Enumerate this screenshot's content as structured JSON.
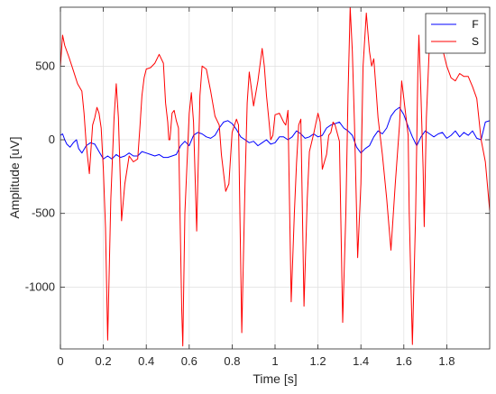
{
  "chart_data": {
    "type": "line",
    "xlabel": "Time [s]",
    "ylabel": "Amplitude [uV]",
    "xlim": [
      0,
      2
    ],
    "ylim": [
      -1420,
      900
    ],
    "x_ticks": [
      0,
      0.2,
      0.4,
      0.6,
      0.8,
      1,
      1.2,
      1.4,
      1.6,
      1.8
    ],
    "x_tick_labels": [
      "0",
      "0.2",
      "0.4",
      "0.6",
      "0.8",
      "1",
      "1.2",
      "1.4",
      "1.6",
      "1.8"
    ],
    "y_ticks": [
      500,
      0,
      -500,
      -1000
    ],
    "y_tick_labels": [
      "500",
      "0",
      "-500",
      "-1000"
    ],
    "grid": true,
    "legend_position": "top-right",
    "series": [
      {
        "name": "F",
        "color": "#0000ff",
        "points": [
          [
            0,
            30
          ],
          [
            0.01,
            40
          ],
          [
            0.02,
            0
          ],
          [
            0.03,
            -30
          ],
          [
            0.045,
            -50
          ],
          [
            0.06,
            -20
          ],
          [
            0.075,
            0
          ],
          [
            0.085,
            -60
          ],
          [
            0.1,
            -90
          ],
          [
            0.12,
            -40
          ],
          [
            0.14,
            -20
          ],
          [
            0.16,
            -30
          ],
          [
            0.18,
            -80
          ],
          [
            0.2,
            -130
          ],
          [
            0.22,
            -110
          ],
          [
            0.24,
            -130
          ],
          [
            0.26,
            -100
          ],
          [
            0.28,
            -120
          ],
          [
            0.3,
            -110
          ],
          [
            0.32,
            -90
          ],
          [
            0.34,
            -110
          ],
          [
            0.36,
            -110
          ],
          [
            0.38,
            -80
          ],
          [
            0.4,
            -90
          ],
          [
            0.42,
            -100
          ],
          [
            0.44,
            -110
          ],
          [
            0.46,
            -100
          ],
          [
            0.48,
            -120
          ],
          [
            0.5,
            -120
          ],
          [
            0.52,
            -110
          ],
          [
            0.54,
            -100
          ],
          [
            0.56,
            -40
          ],
          [
            0.58,
            -10
          ],
          [
            0.6,
            -40
          ],
          [
            0.62,
            30
          ],
          [
            0.64,
            50
          ],
          [
            0.66,
            40
          ],
          [
            0.68,
            20
          ],
          [
            0.7,
            10
          ],
          [
            0.72,
            30
          ],
          [
            0.74,
            80
          ],
          [
            0.76,
            120
          ],
          [
            0.78,
            130
          ],
          [
            0.8,
            110
          ],
          [
            0.82,
            70
          ],
          [
            0.84,
            20
          ],
          [
            0.86,
            0
          ],
          [
            0.88,
            -20
          ],
          [
            0.9,
            -10
          ],
          [
            0.92,
            -40
          ],
          [
            0.94,
            -20
          ],
          [
            0.96,
            0
          ],
          [
            0.98,
            -30
          ],
          [
            1.0,
            -20
          ],
          [
            1.02,
            20
          ],
          [
            1.04,
            20
          ],
          [
            1.06,
            0
          ],
          [
            1.08,
            20
          ],
          [
            1.1,
            60
          ],
          [
            1.12,
            40
          ],
          [
            1.14,
            10
          ],
          [
            1.16,
            20
          ],
          [
            1.18,
            40
          ],
          [
            1.2,
            20
          ],
          [
            1.22,
            30
          ],
          [
            1.24,
            80
          ],
          [
            1.26,
            100
          ],
          [
            1.28,
            110
          ],
          [
            1.3,
            120
          ],
          [
            1.32,
            80
          ],
          [
            1.34,
            60
          ],
          [
            1.36,
            30
          ],
          [
            1.38,
            -50
          ],
          [
            1.4,
            -90
          ],
          [
            1.42,
            -60
          ],
          [
            1.44,
            -40
          ],
          [
            1.46,
            20
          ],
          [
            1.48,
            60
          ],
          [
            1.5,
            40
          ],
          [
            1.52,
            80
          ],
          [
            1.54,
            160
          ],
          [
            1.56,
            200
          ],
          [
            1.58,
            220
          ],
          [
            1.6,
            170
          ],
          [
            1.62,
            90
          ],
          [
            1.64,
            20
          ],
          [
            1.66,
            -40
          ],
          [
            1.68,
            20
          ],
          [
            1.7,
            60
          ],
          [
            1.72,
            40
          ],
          [
            1.74,
            20
          ],
          [
            1.76,
            40
          ],
          [
            1.78,
            50
          ],
          [
            1.8,
            10
          ],
          [
            1.82,
            30
          ],
          [
            1.84,
            60
          ],
          [
            1.86,
            20
          ],
          [
            1.88,
            50
          ],
          [
            1.9,
            30
          ],
          [
            1.92,
            60
          ],
          [
            1.94,
            10
          ],
          [
            1.96,
            0
          ],
          [
            1.98,
            120
          ],
          [
            2.0,
            130
          ]
        ]
      },
      {
        "name": "S",
        "color": "#ff0000",
        "points": [
          [
            0,
            500
          ],
          [
            0.01,
            710
          ],
          [
            0.02,
            640
          ],
          [
            0.04,
            560
          ],
          [
            0.06,
            470
          ],
          [
            0.08,
            380
          ],
          [
            0.1,
            330
          ],
          [
            0.11,
            180
          ],
          [
            0.12,
            -30
          ],
          [
            0.135,
            -230
          ],
          [
            0.15,
            100
          ],
          [
            0.16,
            150
          ],
          [
            0.17,
            220
          ],
          [
            0.18,
            180
          ],
          [
            0.19,
            80
          ],
          [
            0.2,
            -200
          ],
          [
            0.21,
            -600
          ],
          [
            0.22,
            -1360
          ],
          [
            0.235,
            -400
          ],
          [
            0.25,
            150
          ],
          [
            0.26,
            380
          ],
          [
            0.27,
            150
          ],
          [
            0.285,
            -550
          ],
          [
            0.3,
            -300
          ],
          [
            0.32,
            -110
          ],
          [
            0.34,
            -150
          ],
          [
            0.36,
            -130
          ],
          [
            0.37,
            80
          ],
          [
            0.38,
            300
          ],
          [
            0.39,
            420
          ],
          [
            0.4,
            480
          ],
          [
            0.42,
            490
          ],
          [
            0.44,
            520
          ],
          [
            0.46,
            580
          ],
          [
            0.48,
            520
          ],
          [
            0.49,
            250
          ],
          [
            0.5,
            120
          ],
          [
            0.505,
            0
          ],
          [
            0.51,
            0
          ],
          [
            0.52,
            180
          ],
          [
            0.53,
            200
          ],
          [
            0.54,
            130
          ],
          [
            0.55,
            80
          ],
          [
            0.565,
            -1150
          ],
          [
            0.57,
            -1400
          ],
          [
            0.58,
            -500
          ],
          [
            0.6,
            180
          ],
          [
            0.61,
            320
          ],
          [
            0.62,
            120
          ],
          [
            0.635,
            -620
          ],
          [
            0.64,
            -300
          ],
          [
            0.65,
            300
          ],
          [
            0.66,
            500
          ],
          [
            0.68,
            480
          ],
          [
            0.7,
            330
          ],
          [
            0.72,
            160
          ],
          [
            0.74,
            100
          ],
          [
            0.75,
            -100
          ],
          [
            0.77,
            -350
          ],
          [
            0.785,
            -300
          ],
          [
            0.8,
            50
          ],
          [
            0.82,
            140
          ],
          [
            0.83,
            100
          ],
          [
            0.845,
            -1310
          ],
          [
            0.86,
            -300
          ],
          [
            0.87,
            250
          ],
          [
            0.88,
            460
          ],
          [
            0.9,
            230
          ],
          [
            0.92,
            400
          ],
          [
            0.94,
            620
          ],
          [
            0.95,
            500
          ],
          [
            0.96,
            300
          ],
          [
            0.97,
            150
          ],
          [
            0.98,
            0
          ],
          [
            0.99,
            30
          ],
          [
            1.0,
            170
          ],
          [
            1.02,
            180
          ],
          [
            1.04,
            120
          ],
          [
            1.05,
            100
          ],
          [
            1.06,
            200
          ],
          [
            1.075,
            -1100
          ],
          [
            1.09,
            -500
          ],
          [
            1.1,
            -160
          ],
          [
            1.11,
            100
          ],
          [
            1.12,
            140
          ],
          [
            1.135,
            -1130
          ],
          [
            1.15,
            -400
          ],
          [
            1.16,
            -80
          ],
          [
            1.18,
            40
          ],
          [
            1.2,
            180
          ],
          [
            1.21,
            120
          ],
          [
            1.22,
            -200
          ],
          [
            1.24,
            -100
          ],
          [
            1.25,
            30
          ],
          [
            1.26,
            50
          ],
          [
            1.27,
            120
          ],
          [
            1.28,
            100
          ],
          [
            1.3,
            -10
          ],
          [
            1.315,
            -1240
          ],
          [
            1.33,
            -500
          ],
          [
            1.34,
            300
          ],
          [
            1.35,
            900
          ],
          [
            1.36,
            600
          ],
          [
            1.37,
            100
          ],
          [
            1.385,
            -800
          ],
          [
            1.4,
            -300
          ],
          [
            1.41,
            500
          ],
          [
            1.425,
            860
          ],
          [
            1.44,
            600
          ],
          [
            1.45,
            500
          ],
          [
            1.46,
            550
          ],
          [
            1.47,
            350
          ],
          [
            1.48,
            150
          ],
          [
            1.5,
            -100
          ],
          [
            1.52,
            -400
          ],
          [
            1.54,
            -750
          ],
          [
            1.56,
            -300
          ],
          [
            1.58,
            100
          ],
          [
            1.59,
            400
          ],
          [
            1.6,
            280
          ],
          [
            1.62,
            30
          ],
          [
            1.625,
            -500
          ],
          [
            1.64,
            -1390
          ],
          [
            1.655,
            -500
          ],
          [
            1.665,
            450
          ],
          [
            1.67,
            710
          ],
          [
            1.68,
            300
          ],
          [
            1.69,
            -200
          ],
          [
            1.695,
            -590
          ],
          [
            1.705,
            150
          ],
          [
            1.72,
            680
          ],
          [
            1.73,
            820
          ],
          [
            1.74,
            660
          ],
          [
            1.76,
            600
          ],
          [
            1.78,
            620
          ],
          [
            1.8,
            500
          ],
          [
            1.82,
            420
          ],
          [
            1.84,
            400
          ],
          [
            1.86,
            450
          ],
          [
            1.88,
            430
          ],
          [
            1.9,
            430
          ],
          [
            1.92,
            360
          ],
          [
            1.94,
            280
          ],
          [
            1.96,
            0
          ],
          [
            1.98,
            -150
          ],
          [
            2.0,
            -480
          ]
        ]
      }
    ]
  }
}
